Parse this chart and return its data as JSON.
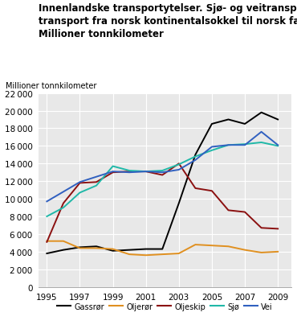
{
  "title_lines": [
    "Innenlandske transportytelser. Sjø- og veitransport og",
    "transport fra norsk kontinentalsokkel til norsk fastland.",
    "Millioner tonnkilometer"
  ],
  "ylabel": "Millioner tonnkilometer",
  "years": [
    1995,
    1996,
    1997,
    1998,
    1999,
    2000,
    2001,
    2002,
    2003,
    2004,
    2005,
    2006,
    2007,
    2008,
    2009
  ],
  "Gassrør": [
    3800,
    4200,
    4500,
    4600,
    4100,
    4200,
    4300,
    4300,
    9500,
    15000,
    18500,
    19000,
    18500,
    19800,
    19000
  ],
  "Oljerør": [
    5200,
    5200,
    4400,
    4400,
    4300,
    3700,
    3600,
    3700,
    3800,
    4800,
    4700,
    4600,
    4200,
    3900,
    4000
  ],
  "Oljeskip": [
    5100,
    9500,
    11800,
    11900,
    13000,
    13100,
    13100,
    12700,
    14000,
    11200,
    10900,
    8700,
    8500,
    6700,
    6600
  ],
  "Sjø": [
    8000,
    9000,
    10700,
    11500,
    13700,
    13200,
    13100,
    13200,
    13900,
    14800,
    15500,
    16100,
    16200,
    16400,
    16000
  ],
  "Vei": [
    9700,
    10800,
    11900,
    12500,
    13100,
    13000,
    13100,
    13000,
    13300,
    14400,
    15900,
    16100,
    16100,
    17600,
    16100
  ],
  "colors": {
    "Gassrør": "#000000",
    "Oljerør": "#e09020",
    "Oljeskip": "#8b1010",
    "Sjø": "#20b8a8",
    "Vei": "#3060c0"
  },
  "ylim": [
    0,
    22000
  ],
  "yticks": [
    0,
    2000,
    4000,
    6000,
    8000,
    10000,
    12000,
    14000,
    16000,
    18000,
    20000,
    22000
  ],
  "xticks": [
    1995,
    1997,
    1999,
    2001,
    2003,
    2005,
    2007,
    2009
  ],
  "bg_color": "#e8e8e8",
  "grid_color": "#ffffff",
  "legend_order": [
    "Gassrør",
    "Oljerør",
    "Oljeskip",
    "Sjø",
    "Vei"
  ]
}
